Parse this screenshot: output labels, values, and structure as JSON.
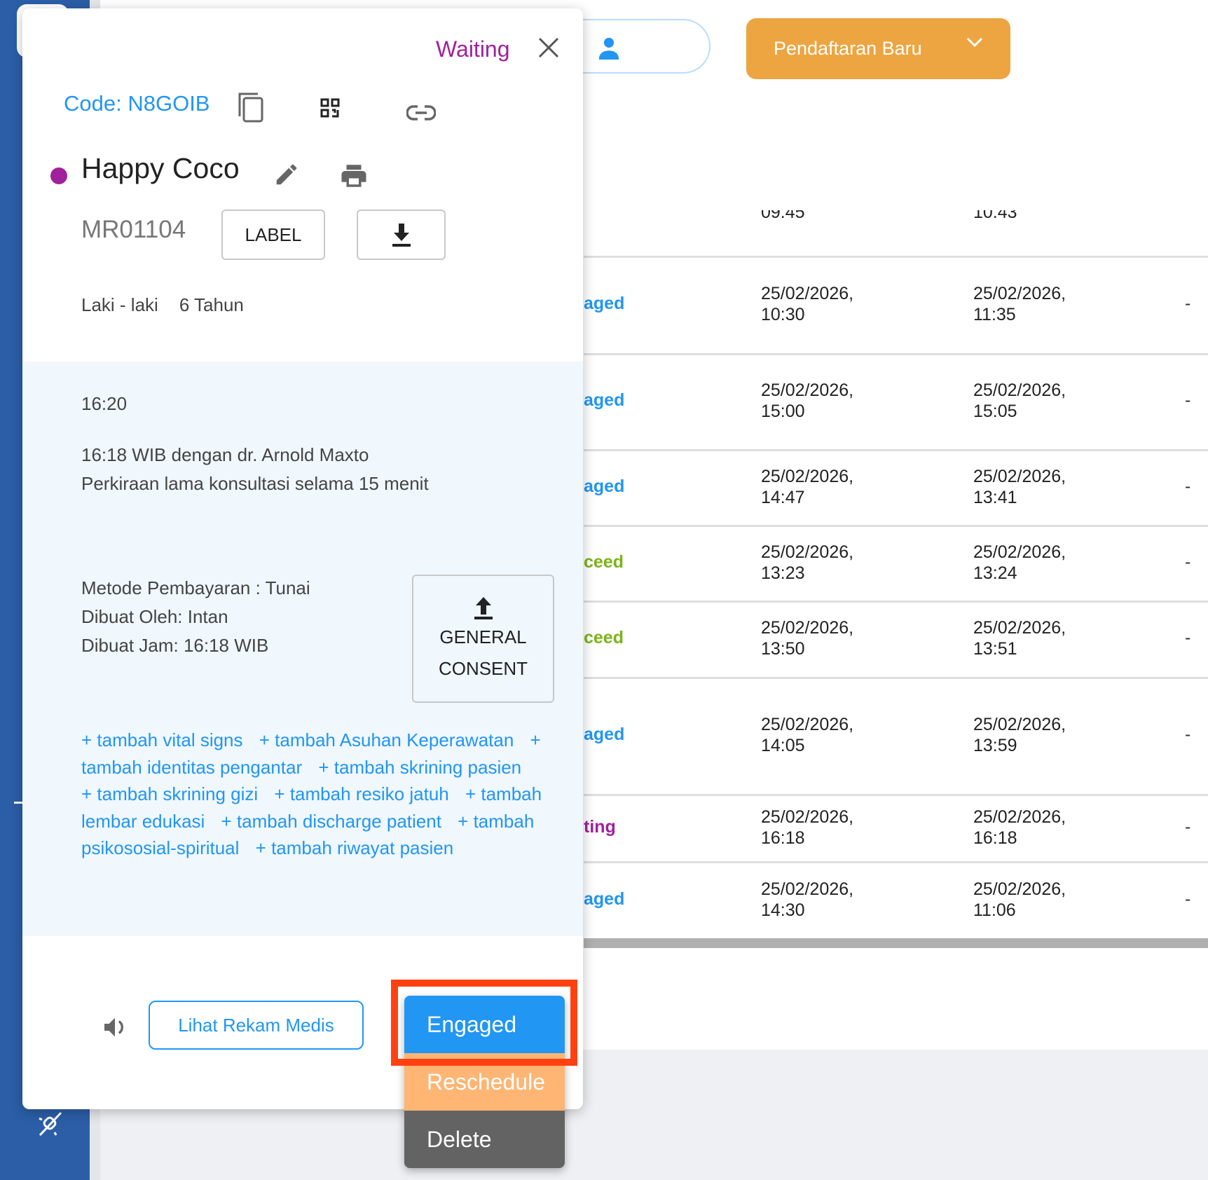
{
  "header": {
    "new_registration_label": "Pendaftaran Baru"
  },
  "table": {
    "partial_row": {
      "date1": "09.45",
      "date2": "10.43"
    },
    "rows": [
      {
        "status": "aged",
        "status_color": "#2196f3",
        "date1": "25/02/2026,",
        "time1": "10:30",
        "date2": "25/02/2026,",
        "time2": "11:35",
        "extra": "-"
      },
      {
        "status": "aged",
        "status_color": "#2196f3",
        "date1": "25/02/2026,",
        "time1": "15:00",
        "date2": "25/02/2026,",
        "time2": "15:05",
        "extra": "-"
      },
      {
        "status": "aged",
        "status_color": "#2196f3",
        "date1": "25/02/2026,",
        "time1": "14:47",
        "date2": "25/02/2026,",
        "time2": "13:41",
        "extra": "-"
      },
      {
        "status": "ceed",
        "status_color": "#7cb319",
        "date1": "25/02/2026,",
        "time1": "13:23",
        "date2": "25/02/2026,",
        "time2": "13:24",
        "extra": "-"
      },
      {
        "status": "ceed",
        "status_color": "#7cb319",
        "date1": "25/02/2026,",
        "time1": "13:50",
        "date2": "25/02/2026,",
        "time2": "13:51",
        "extra": "-"
      },
      {
        "status": "aged",
        "status_color": "#2196f3",
        "date1": "25/02/2026,",
        "time1": "14:05",
        "date2": "25/02/2026,",
        "time2": "13:59",
        "extra": "-"
      },
      {
        "status": "ting",
        "status_color": "#a0219b",
        "date1": "25/02/2026,",
        "time1": "16:18",
        "date2": "25/02/2026,",
        "time2": "16:18",
        "extra": "-"
      },
      {
        "status": "aged",
        "status_color": "#2196f3",
        "date1": "25/02/2026,",
        "time1": "14:30",
        "date2": "25/02/2026,",
        "time2": "11:06",
        "extra": "-"
      }
    ]
  },
  "modal": {
    "status": "Waiting",
    "code": "Code: N8GOIB",
    "patient_name": "Happy Coco",
    "status_dot_color": "#a0219b",
    "mr_number": "MR01104",
    "label_button": "LABEL",
    "gender": "Laki - laki",
    "age": "6 Tahun",
    "time": "16:20",
    "appointment": "16:18 WIB dengan dr. Arnold Maxto",
    "duration": "Perkiraan lama konsultasi selama 15 menit",
    "payment": "Metode Pembayaran : Tunai",
    "created_by": "Dibuat Oleh: Intan",
    "created_at": "Dibuat Jam: 16:18 WIB",
    "consent_line1": "GENERAL",
    "consent_line2": "CONSENT",
    "links": [
      "+ tambah vital signs",
      "+ tambah Asuhan Keperawatan",
      "+ tambah identitas pengantar",
      "+ tambah skrining pasien",
      "+ tambah skrining gizi",
      "+ tambah resiko jatuh",
      "+ tambah lembar edukasi",
      "+ tambah discharge patient",
      "+ tambah psikososial-spiritual",
      "+ tambah riwayat pasien"
    ],
    "view_record_button": "Lihat Rekam Medis"
  },
  "status_menu": {
    "items": [
      {
        "label": "Engaged",
        "color": "#2196f3"
      },
      {
        "label": "Reschedule",
        "color": "#ffb574"
      },
      {
        "label": "Delete",
        "color": "#636363"
      }
    ]
  }
}
